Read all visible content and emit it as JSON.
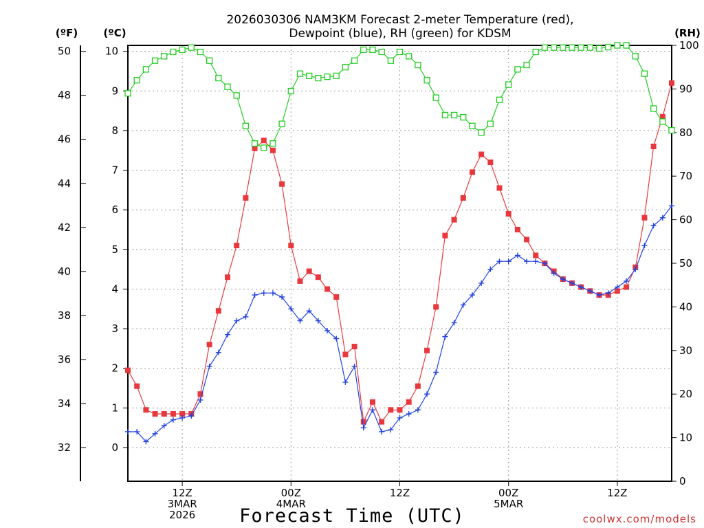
{
  "chart_data": {
    "type": "line",
    "title_line1": "2026030306 NAM3KM Forecast 2-meter Temperature (red),",
    "title_line2": "Dewpoint (blue), RH (green) for KDSM",
    "xlabel": "Forecast Time (UTC)",
    "unit_f": "(ºF)",
    "unit_c": "(ºC)",
    "unit_rh": "(RH)",
    "credit": "coolwx.com/models",
    "x_ticks": [
      {
        "hour": 6,
        "lines": [
          "12Z",
          "3MAR",
          "2026"
        ]
      },
      {
        "hour": 18,
        "lines": [
          "00Z",
          "4MAR"
        ]
      },
      {
        "hour": 30,
        "lines": [
          "12Z"
        ]
      },
      {
        "hour": 42,
        "lines": [
          "00Z",
          "5MAR"
        ]
      },
      {
        "hour": 54,
        "lines": [
          "12Z"
        ]
      }
    ],
    "xlim": [
      0,
      60
    ],
    "ylim_c": [
      -0.85,
      10.15
    ],
    "ylim_rh": [
      0,
      100
    ],
    "yticks_c": [
      0,
      1,
      2,
      3,
      4,
      5,
      6,
      7,
      8,
      9,
      10
    ],
    "yticks_f": [
      32,
      34,
      36,
      38,
      40,
      42,
      44,
      46,
      48,
      50
    ],
    "yticks_rh": [
      0,
      10,
      20,
      30,
      40,
      50,
      60,
      70,
      80,
      90,
      100
    ],
    "grid": true,
    "series": [
      {
        "name": "Temperature",
        "axis": "c",
        "color": "#e8383d",
        "marker": "filled-square",
        "x": [
          0,
          1,
          2,
          3,
          4,
          5,
          6,
          7,
          8,
          9,
          10,
          11,
          12,
          13,
          14,
          15,
          16,
          17,
          18,
          19,
          20,
          21,
          22,
          23,
          24,
          25,
          26,
          27,
          28,
          29,
          30,
          31,
          32,
          33,
          34,
          35,
          36,
          37,
          38,
          39,
          40,
          41,
          42,
          43,
          44,
          45,
          46,
          47,
          48,
          49,
          50,
          51,
          52,
          53,
          54,
          55,
          56,
          57,
          58,
          59,
          60
        ],
        "values": [
          1.95,
          1.55,
          0.95,
          0.85,
          0.85,
          0.85,
          0.85,
          0.85,
          1.35,
          2.6,
          3.45,
          4.3,
          5.1,
          6.3,
          7.55,
          7.75,
          7.5,
          6.65,
          5.1,
          4.2,
          4.45,
          4.3,
          4.0,
          3.8,
          2.35,
          2.55,
          0.65,
          1.15,
          0.65,
          0.95,
          0.95,
          1.15,
          1.55,
          2.45,
          3.55,
          5.35,
          5.75,
          6.3,
          6.95,
          7.4,
          7.2,
          6.55,
          5.9,
          5.5,
          5.25,
          4.85,
          4.65,
          4.45,
          4.25,
          4.15,
          4.05,
          3.95,
          3.85,
          3.85,
          3.95,
          4.05,
          4.55,
          5.8,
          7.6,
          8.35,
          9.2
        ]
      },
      {
        "name": "Dewpoint",
        "axis": "c",
        "color": "#2040e0",
        "marker": "plus",
        "x": [
          0,
          1,
          2,
          3,
          4,
          5,
          6,
          7,
          8,
          9,
          10,
          11,
          12,
          13,
          14,
          15,
          16,
          17,
          18,
          19,
          20,
          21,
          22,
          23,
          24,
          25,
          26,
          27,
          28,
          29,
          30,
          31,
          32,
          33,
          34,
          35,
          36,
          37,
          38,
          39,
          40,
          41,
          42,
          43,
          44,
          45,
          46,
          47,
          48,
          49,
          50,
          51,
          52,
          53,
          54,
          55,
          56,
          57,
          58,
          59,
          60
        ],
        "values": [
          0.4,
          0.4,
          0.15,
          0.35,
          0.55,
          0.7,
          0.75,
          0.8,
          1.2,
          2.05,
          2.4,
          2.85,
          3.2,
          3.3,
          3.85,
          3.9,
          3.9,
          3.8,
          3.5,
          3.2,
          3.45,
          3.2,
          2.95,
          2.75,
          1.65,
          2.05,
          0.5,
          0.95,
          0.4,
          0.45,
          0.75,
          0.85,
          0.95,
          1.35,
          1.9,
          2.8,
          3.15,
          3.6,
          3.85,
          4.15,
          4.5,
          4.7,
          4.7,
          4.85,
          4.7,
          4.7,
          4.65,
          4.4,
          4.25,
          4.15,
          4.05,
          3.95,
          3.85,
          3.9,
          4.05,
          4.2,
          4.5,
          5.1,
          5.6,
          5.8,
          6.1
        ]
      },
      {
        "name": "RH",
        "axis": "rh",
        "color": "#22cc22",
        "marker": "open-square",
        "x": [
          0,
          1,
          2,
          3,
          4,
          5,
          6,
          7,
          8,
          9,
          10,
          11,
          12,
          13,
          14,
          15,
          16,
          17,
          18,
          19,
          20,
          21,
          22,
          23,
          24,
          25,
          26,
          27,
          28,
          29,
          30,
          31,
          32,
          33,
          34,
          35,
          36,
          37,
          38,
          39,
          40,
          41,
          42,
          43,
          44,
          45,
          46,
          47,
          48,
          49,
          50,
          51,
          52,
          53,
          54,
          55,
          56,
          57,
          58,
          59,
          60
        ],
        "values": [
          89,
          92,
          94.5,
          96.5,
          97.5,
          98.5,
          99,
          99.5,
          98.5,
          96.5,
          92.5,
          90.5,
          88.5,
          81.5,
          77.5,
          76.5,
          77.5,
          82,
          89.5,
          93.5,
          93,
          92.5,
          92.8,
          93,
          95,
          96.5,
          99,
          99,
          98.5,
          96.5,
          98.5,
          97.5,
          95.5,
          92,
          88,
          84,
          84,
          83.5,
          81.5,
          80,
          82,
          87.5,
          91,
          94.5,
          95.5,
          98.5,
          99.5,
          99.5,
          99.5,
          99.5,
          99.5,
          99.5,
          99.3,
          99.6,
          100,
          100,
          97.5,
          93.5,
          85.5,
          82.5,
          80.5
        ]
      }
    ]
  }
}
